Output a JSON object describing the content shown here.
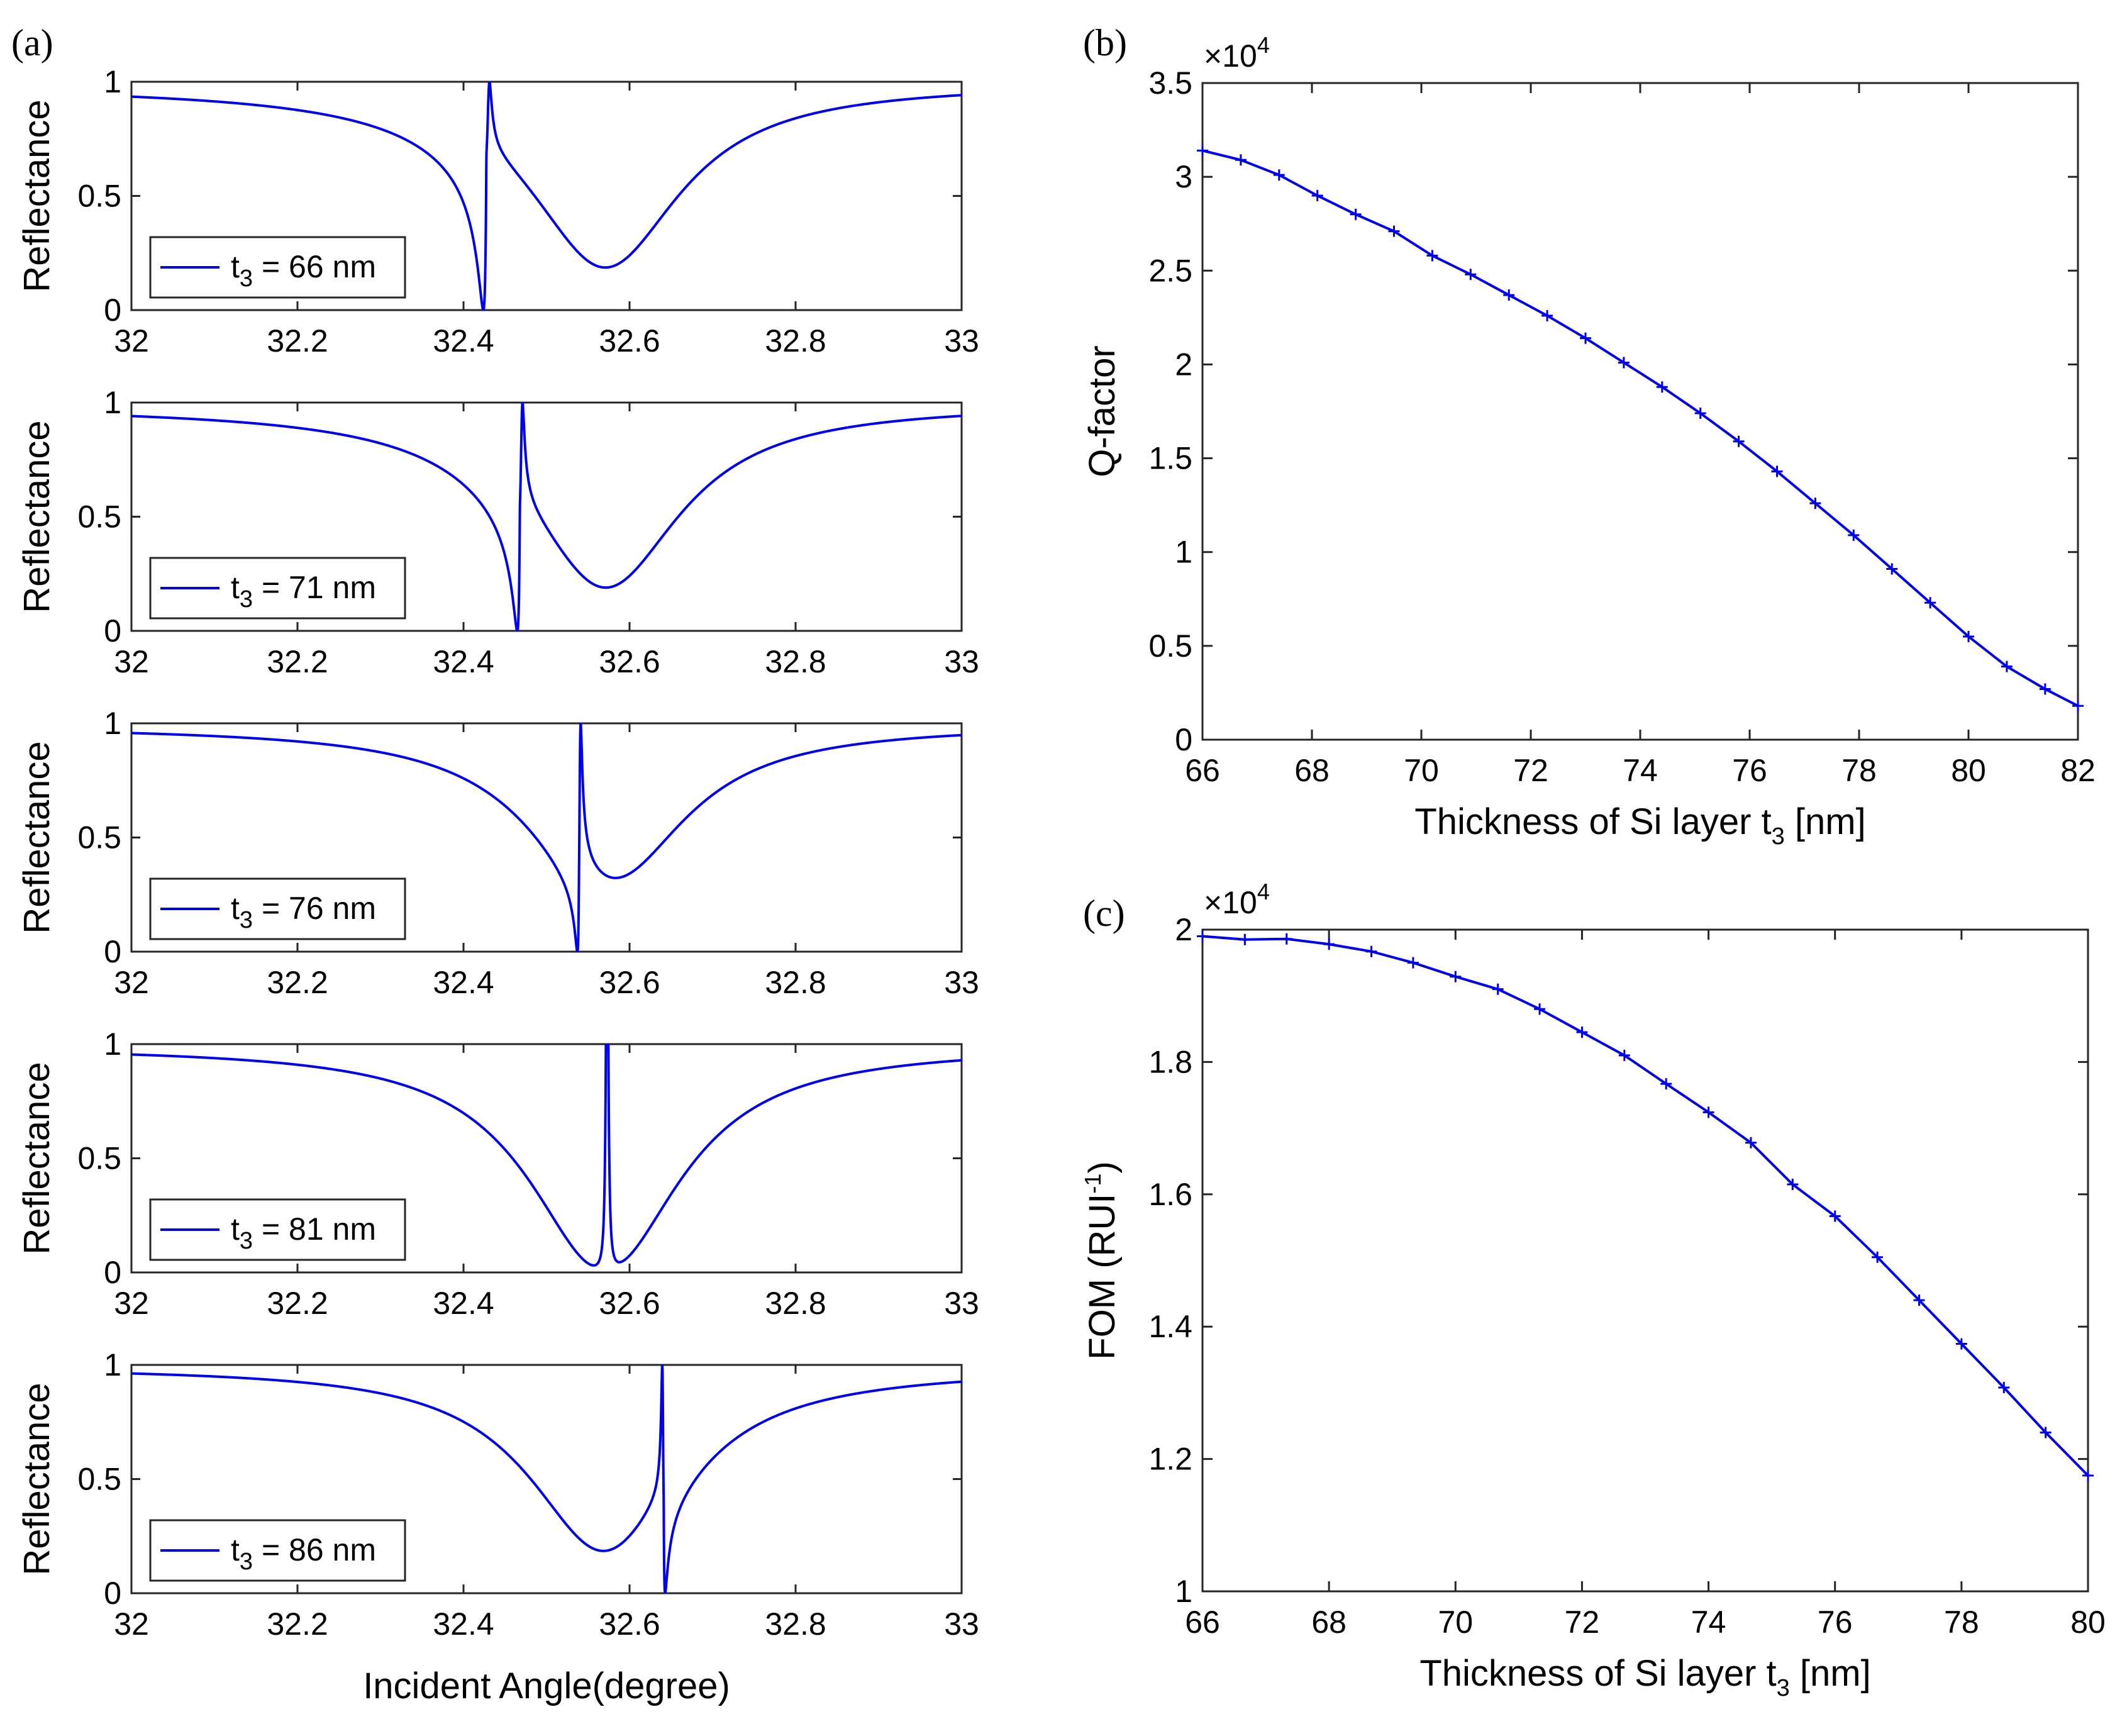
{
  "chart_data": [
    {
      "panel_label": "(a)",
      "type": "line",
      "title": "",
      "xlabel": "Incident Angle(degree)",
      "ylabel": "Reflectance",
      "xlim": [
        32,
        33
      ],
      "ylim": [
        0,
        1
      ],
      "xticks": [
        "32",
        "32.2",
        "32.4",
        "32.6",
        "32.8",
        "33"
      ],
      "yticks": [
        "0",
        "0.5",
        "1"
      ],
      "color": "#0000ee",
      "legend_position": "bottom-left",
      "subplots": [
        {
          "legend_sub": "3",
          "legend_rest": " = 66 nm",
          "dip_center": 32.57,
          "dip_width": 0.11,
          "baseline": 0.99,
          "fano_position": 32.43,
          "fano_width": 0.0028,
          "fano_q": 2.2
        },
        {
          "legend_sub": "3",
          "legend_rest": " = 71 nm",
          "dip_center": 32.57,
          "dip_width": 0.11,
          "baseline": 0.99,
          "fano_position": 32.47,
          "fano_width": 0.0024,
          "fano_q": 2.2
        },
        {
          "legend_sub": "3",
          "legend_rest": " = 76 nm",
          "dip_center": 32.575,
          "dip_width": 0.11,
          "baseline": 0.99,
          "fano_position": 32.54,
          "fano_width": 0.0018,
          "fano_q": 1.6
        },
        {
          "legend_sub": "3",
          "legend_rest": " = 81 nm",
          "dip_center": 32.57,
          "dip_width": 0.11,
          "baseline": 0.99,
          "fano_position": 32.573,
          "fano_width": 0.0015,
          "fano_q": 0
        },
        {
          "legend_sub": "3",
          "legend_rest": " = 86 nm",
          "dip_center": 32.57,
          "dip_width": 0.11,
          "baseline": 0.99,
          "fano_position": 32.64,
          "fano_width": 0.0013,
          "fano_q": -2.2
        }
      ]
    },
    {
      "panel_label": "(b)",
      "type": "line",
      "title": "",
      "xlabel": "Thickness of Si layer t",
      "xlabel_sub": "3",
      "xlabel_rest": " [nm]",
      "ylabel": "Q-factor",
      "multiplier_base": "×10",
      "multiplier_exp": "4",
      "xlim": [
        66,
        82
      ],
      "ylim": [
        0,
        3.5
      ],
      "xticks": [
        "66",
        "68",
        "70",
        "72",
        "74",
        "76",
        "78",
        "80",
        "82"
      ],
      "yticks": [
        "0",
        "0.5",
        "1",
        "1.5",
        "2",
        "2.5",
        "3",
        "3.5"
      ],
      "color": "#0000ee",
      "marker": "+",
      "x": [
        66,
        66.7,
        67.4,
        68.1,
        68.8,
        69.5,
        70.2,
        70.9,
        71.6,
        72.3,
        73.0,
        73.7,
        74.4,
        75.1,
        75.8,
        76.5,
        77.2,
        77.9,
        78.6,
        79.3,
        80.0,
        80.7,
        81.4,
        82.0
      ],
      "y": [
        3.14,
        3.09,
        3.01,
        2.9,
        2.8,
        2.71,
        2.58,
        2.48,
        2.37,
        2.26,
        2.14,
        2.01,
        1.88,
        1.74,
        1.59,
        1.43,
        1.26,
        1.09,
        0.91,
        0.73,
        0.55,
        0.39,
        0.27,
        0.18
      ]
    },
    {
      "panel_label": "(c)",
      "type": "line",
      "title": "",
      "xlabel": "Thickness of Si layer t",
      "xlabel_sub": "3",
      "xlabel_rest": " [nm]",
      "ylabel": "FOM (RUI",
      "ylabel_sup": "-1",
      "ylabel_rest": ")",
      "multiplier_base": "×10",
      "multiplier_exp": "4",
      "xlim": [
        66,
        80
      ],
      "ylim": [
        1,
        2
      ],
      "xticks": [
        "66",
        "68",
        "70",
        "72",
        "74",
        "76",
        "78",
        "80"
      ],
      "yticks": [
        "1",
        "1.2",
        "1.4",
        "1.6",
        "1.8",
        "2"
      ],
      "color": "#0000ee",
      "marker": "+",
      "x": [
        66,
        66.67,
        67.33,
        68,
        68.67,
        69.33,
        70,
        70.67,
        71.33,
        72,
        72.67,
        73.33,
        74,
        74.67,
        75.33,
        76,
        76.67,
        77.33,
        78,
        78.67,
        79.33,
        80
      ],
      "y": [
        1.99,
        1.985,
        1.986,
        1.978,
        1.967,
        1.95,
        1.929,
        1.91,
        1.88,
        1.845,
        1.81,
        1.767,
        1.724,
        1.678,
        1.615,
        1.567,
        1.505,
        1.44,
        1.374,
        1.308,
        1.24,
        1.175
      ]
    }
  ]
}
